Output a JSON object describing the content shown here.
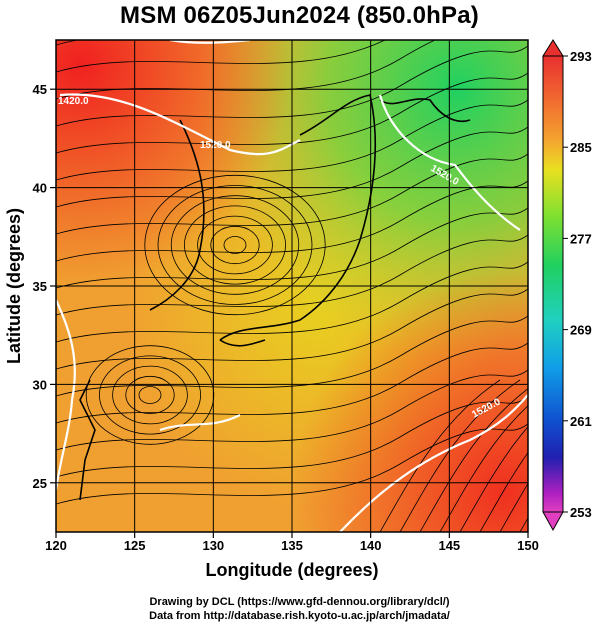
{
  "title": "MSM 06Z05Jun2024 (850.0hPa)",
  "footer": {
    "line1": "Drawing by DCL (https://www.gfd-dennou.org/library/dcl/)",
    "line2": "Data from http://database.rish.kyoto-u.ac.jp/arch/jmadata/"
  },
  "chart_data": {
    "type": "heatmap",
    "title": "MSM 06Z05Jun2024 (850.0hPa)",
    "xlabel": "Longitude (degrees)",
    "ylabel": "Latitude  (degrees)",
    "xlim": [
      120,
      150
    ],
    "ylim": [
      22.5,
      47.5
    ],
    "xticks": [
      120,
      125,
      130,
      135,
      140,
      145,
      150
    ],
    "yticks": [
      25,
      30,
      35,
      40,
      45
    ],
    "grid": true,
    "colorbar": {
      "ticks": [
        293,
        285,
        277,
        269,
        261,
        253
      ],
      "min": 253,
      "max": 293
    },
    "contour_labels": [
      "1420.0",
      "1520.0",
      "1520.0",
      "1520.0"
    ],
    "overlays": [
      "streamlines",
      "coastlines",
      "geopotential height contours"
    ]
  }
}
